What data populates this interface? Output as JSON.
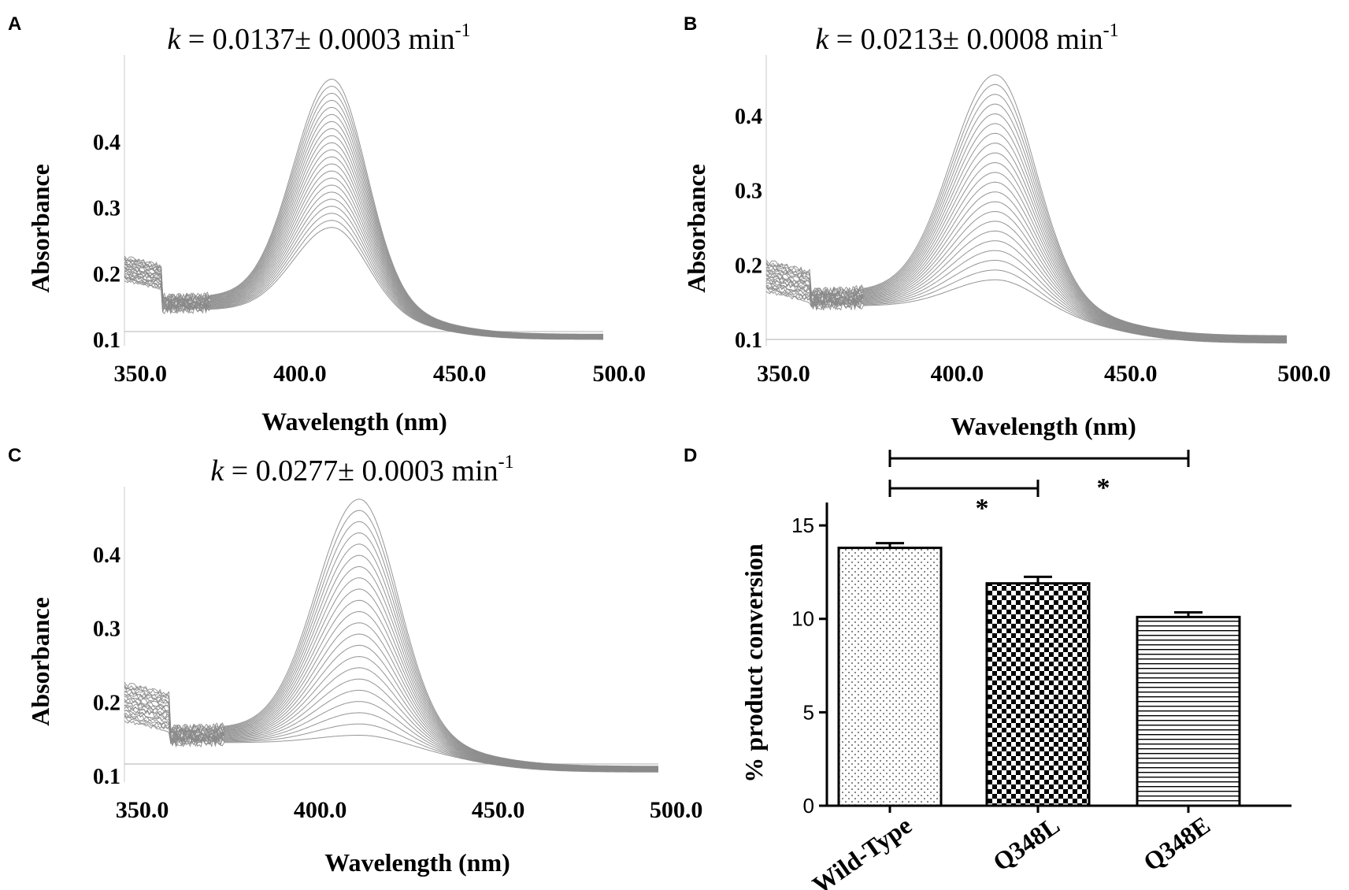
{
  "chart_data": [
    {
      "panel": "A",
      "type": "line",
      "title_prefix": "k",
      "title_rest": " = 0.0137± 0.0003 min",
      "title_sup": "-1",
      "xlabel": "Wavelength (nm)",
      "ylabel": "Absorbance",
      "xticks": [
        "350.0",
        "400.0",
        "450.0",
        "500.0"
      ],
      "yticks": [
        "0.1",
        "0.2",
        "0.3",
        "0.4"
      ],
      "xlim": [
        345,
        495
      ],
      "ylim": [
        0.1,
        0.5
      ],
      "baseline": 0.112,
      "n_traces": 22,
      "step_nm": 357,
      "peak_nm": 410,
      "peak_width_nm": 17,
      "peak_min": 0.27,
      "peak_max": 0.495,
      "plateau_min": 0.19,
      "plateau_max": 0.225,
      "tail_min": 0.1,
      "tail_max": 0.108
    },
    {
      "panel": "B",
      "type": "line",
      "title_prefix": "k",
      "title_rest": " = 0.0213± 0.0008 min",
      "title_sup": "-1",
      "xlabel": "Wavelength (nm)",
      "ylabel": "Absorbance",
      "xticks": [
        "350.0",
        "400.0",
        "450.0",
        "500.0"
      ],
      "yticks": [
        "0.1",
        "0.2",
        "0.3",
        "0.4"
      ],
      "xlim": [
        345,
        495
      ],
      "ylim": [
        0.1,
        0.5
      ],
      "baseline": 0.1,
      "n_traces": 22,
      "step_nm": 358,
      "peak_nm": 411,
      "peak_width_nm": 18,
      "peak_min": 0.18,
      "peak_max": 0.455,
      "plateau_min": 0.165,
      "plateau_max": 0.205,
      "tail_min": 0.095,
      "tail_max": 0.105
    },
    {
      "panel": "C",
      "type": "line",
      "title_prefix": "k",
      "title_rest": " = 0.0277± 0.0003 min",
      "title_sup": "-1",
      "xlabel": "Wavelength (nm)",
      "ylabel": "Absorbance",
      "xticks": [
        "350.0",
        "400.0",
        "450.0",
        "500.0"
      ],
      "yticks": [
        "0.1",
        "0.2",
        "0.3",
        "0.4"
      ],
      "xlim": [
        345,
        495
      ],
      "ylim": [
        0.1,
        0.5
      ],
      "baseline": 0.116,
      "n_traces": 22,
      "step_nm": 358,
      "peak_nm": 411,
      "peak_width_nm": 17,
      "peak_min": 0.155,
      "peak_max": 0.475,
      "plateau_min": 0.175,
      "plateau_max": 0.225,
      "tail_min": 0.105,
      "tail_max": 0.113
    },
    {
      "panel": "D",
      "type": "bar",
      "categories": [
        "Wild-Type",
        "Q348L",
        "Q348E"
      ],
      "values": [
        13.8,
        11.9,
        10.1
      ],
      "errors": [
        0.25,
        0.35,
        0.25
      ],
      "patterns": [
        "dots",
        "checker",
        "hstripes"
      ],
      "ylabel": "% product conversion",
      "yticks": [
        "0",
        "5",
        "10",
        "15"
      ],
      "ylim": [
        0,
        15.3
      ],
      "significance": [
        {
          "from": 0,
          "to": 1,
          "label": "*"
        },
        {
          "from": 0,
          "to": 2,
          "label": "*"
        }
      ]
    }
  ]
}
